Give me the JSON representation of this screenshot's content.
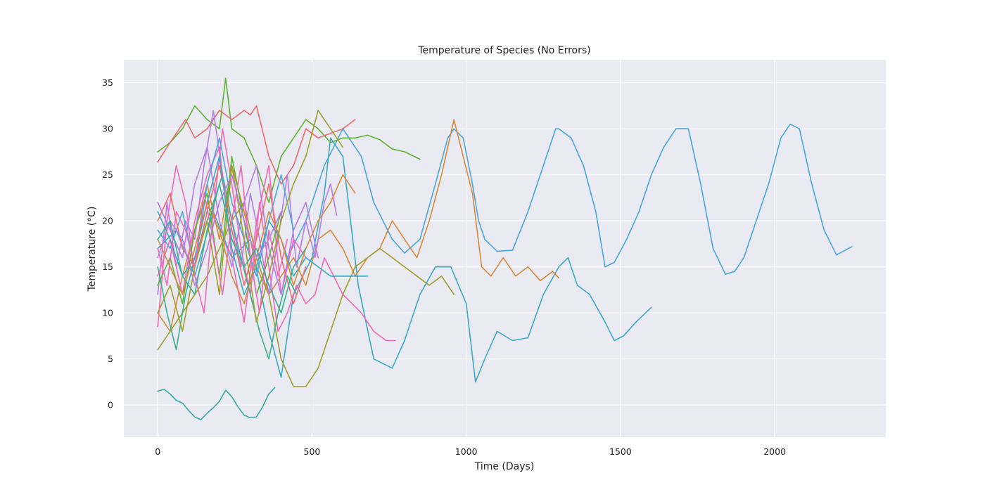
{
  "chart_data": {
    "type": "line",
    "title": "Temperature of Species (No Errors)",
    "xlabel": "Time (Days)",
    "ylabel": "Temperature (°C)",
    "xlim": [
      -110,
      2360
    ],
    "ylim": [
      -3.5,
      37.5
    ],
    "xticks": [
      0,
      500,
      1000,
      1500,
      2000
    ],
    "yticks": [
      0,
      5,
      10,
      15,
      20,
      25,
      30,
      35
    ],
    "grid": true,
    "legend": "none",
    "colors": {
      "background": "#ffffff",
      "plot_area": "#eaeaf2",
      "grid": "#ffffff"
    },
    "series": [
      {
        "color": "#4aa5dd",
        "x": [
          420,
          480,
          540,
          600,
          660,
          700,
          760,
          800,
          850,
          900,
          940,
          960,
          990,
          1020,
          1040,
          1060,
          1100,
          1150,
          1200,
          1250,
          1290,
          1300,
          1340,
          1380,
          1420,
          1450,
          1480,
          1520,
          1560,
          1600,
          1640,
          1680,
          1720,
          1760,
          1800,
          1840,
          1870,
          1900,
          1940,
          1980,
          2020,
          2050,
          2080,
          2120,
          2160,
          2200,
          2250
        ],
        "y": [
          16,
          20,
          26,
          30,
          27,
          22,
          18,
          16.5,
          18,
          24,
          29,
          30,
          29,
          24,
          20,
          18,
          16.7,
          16.8,
          21,
          26,
          30,
          30,
          29,
          26,
          21,
          15,
          15.5,
          18,
          21,
          25,
          28,
          30,
          30,
          24,
          17,
          14.2,
          14.5,
          16,
          20,
          24,
          29,
          30.5,
          30,
          24,
          19,
          16.3,
          17.2
        ]
      },
      {
        "color": "#3ba9c6",
        "x": [
          0,
          60,
          120,
          180,
          240,
          300,
          360,
          400,
          440,
          500,
          540,
          560,
          600,
          650,
          700,
          760,
          800,
          850,
          900,
          950,
          1000,
          1030,
          1060,
          1100,
          1150,
          1200,
          1250,
          1300,
          1330,
          1360,
          1400,
          1450,
          1480,
          1510,
          1550,
          1600
        ],
        "y": [
          17,
          19,
          14,
          21,
          16,
          18,
          8,
          3,
          12,
          16,
          23,
          29,
          27,
          13,
          5,
          4,
          7,
          12,
          15,
          15,
          11,
          2.5,
          5,
          8,
          7,
          7.3,
          12,
          15,
          16,
          13,
          12,
          9,
          7,
          7.5,
          9,
          10.6
        ]
      },
      {
        "color": "#d48a3a",
        "x": [
          0,
          40,
          80,
          120,
          160,
          200,
          240,
          280,
          320,
          360,
          400,
          440,
          480,
          520,
          560,
          600,
          640,
          680,
          720,
          760,
          800,
          840,
          880,
          920,
          960,
          990,
          1020,
          1050,
          1080,
          1120,
          1160,
          1200,
          1240,
          1280,
          1300
        ],
        "y": [
          10,
          8,
          14,
          19,
          24,
          18,
          26,
          21,
          15,
          12,
          14,
          16,
          13,
          18,
          19,
          17,
          14,
          16,
          17,
          20,
          18,
          16,
          20,
          25,
          31,
          27,
          23,
          15,
          14,
          16,
          14,
          15,
          13.5,
          14.5,
          13.8
        ]
      },
      {
        "color": "#9e9e2c",
        "x": [
          0,
          40,
          80,
          120,
          160,
          200,
          240,
          280,
          320,
          360,
          400,
          440,
          480,
          520,
          560,
          600,
          640,
          680,
          720,
          760,
          800,
          840,
          880,
          920,
          960
        ],
        "y": [
          6,
          8,
          10,
          12,
          14,
          17,
          20,
          22,
          16,
          12,
          5,
          2,
          2,
          4,
          8,
          12,
          15,
          16,
          17,
          16,
          15,
          14,
          13,
          14,
          12
        ]
      },
      {
        "color": "#5cb330",
        "x": [
          0,
          40,
          80,
          120,
          160,
          200,
          220,
          240,
          280,
          320,
          360,
          400,
          440,
          480,
          520,
          560,
          600,
          640,
          680,
          720,
          760,
          800,
          850
        ],
        "y": [
          27.5,
          28.5,
          30,
          32.5,
          31,
          30,
          35.5,
          30,
          29,
          26,
          22,
          27,
          29,
          31,
          30,
          28.5,
          29,
          29,
          29.3,
          28.8,
          27.8,
          27.5,
          26.7
        ]
      },
      {
        "color": "#eb6b6b",
        "x": [
          0,
          30,
          60,
          90,
          120,
          160,
          200,
          240,
          280,
          300,
          320,
          360,
          400,
          440,
          480,
          520,
          560,
          600,
          640
        ],
        "y": [
          26.4,
          28,
          29.5,
          31,
          29,
          30,
          32,
          31,
          32,
          31.5,
          32.5,
          27,
          24,
          26,
          30,
          29,
          29.5,
          30,
          31
        ]
      },
      {
        "color": "#ef6ab5",
        "x": [
          0,
          30,
          60,
          90,
          120,
          150,
          180,
          210,
          240,
          270,
          300,
          330,
          360,
          390,
          420,
          450,
          480,
          510,
          540,
          570,
          600,
          630,
          660,
          700,
          740,
          770
        ],
        "y": [
          8.5,
          20,
          26,
          22,
          14,
          10,
          21,
          30,
          24,
          17,
          12,
          22,
          15,
          8,
          10,
          13,
          11,
          12,
          16,
          14,
          12,
          11,
          10,
          8,
          7,
          7
        ]
      },
      {
        "color": "#b57ce6",
        "x": [
          0,
          30,
          60,
          90,
          120,
          150,
          180,
          210,
          240,
          270,
          300,
          330,
          360,
          390,
          420,
          450,
          480,
          510,
          540,
          560,
          580
        ],
        "y": [
          12,
          22,
          15,
          20,
          18,
          26,
          32,
          25,
          20,
          15,
          23,
          18,
          12,
          18,
          25,
          15,
          20,
          16,
          22,
          24,
          20.6
        ]
      },
      {
        "color": "#3ab090",
        "x": [
          0,
          30,
          60,
          90,
          120,
          150,
          180,
          210,
          240,
          270,
          300,
          330,
          360,
          390,
          420,
          450
        ],
        "y": [
          15,
          10,
          6,
          12,
          16,
          19,
          22,
          25,
          20,
          16,
          12,
          8,
          5,
          10,
          14,
          12
        ]
      },
      {
        "color": "#35aaa5",
        "x": [
          0,
          20,
          40,
          60,
          80,
          100,
          120,
          140,
          160,
          180,
          200,
          220,
          240,
          260,
          280,
          300,
          320,
          340,
          360,
          380
        ],
        "y": [
          1.5,
          1.7,
          1.2,
          0.5,
          0.2,
          -0.6,
          -1.3,
          -1.6,
          -0.9,
          -0.3,
          0.4,
          1.6,
          0.9,
          -0.2,
          -1.1,
          -1.4,
          -1.3,
          -0.2,
          1.2,
          1.9
        ]
      },
      {
        "color": "#ef6ab5",
        "x": [
          0,
          40,
          80,
          120,
          160,
          200,
          240,
          280,
          320,
          360,
          400,
          440,
          480
        ],
        "y": [
          14,
          18,
          12,
          20,
          25,
          28,
          16,
          9,
          20,
          26,
          12,
          18,
          16
        ]
      },
      {
        "color": "#b57ce6",
        "x": [
          0,
          40,
          80,
          120,
          160,
          200,
          240,
          280,
          320,
          360,
          400,
          440,
          480,
          520
        ],
        "y": [
          22,
          19,
          16,
          24,
          28,
          20,
          15,
          22,
          26,
          17,
          12,
          19,
          22,
          16
        ]
      },
      {
        "color": "#4aa5dd",
        "x": [
          0,
          40,
          80,
          120,
          160,
          200,
          240,
          280,
          320,
          360,
          400,
          440
        ],
        "y": [
          19,
          17,
          21,
          15,
          24,
          29,
          22,
          18,
          14,
          20,
          25,
          19
        ]
      },
      {
        "color": "#5cb330",
        "x": [
          0,
          40,
          80,
          120,
          160,
          200,
          240,
          280,
          320,
          360,
          400
        ],
        "y": [
          13,
          16,
          11,
          19,
          23,
          14,
          27,
          20,
          12,
          16,
          21
        ]
      },
      {
        "color": "#eb6b6b",
        "x": [
          0,
          40,
          80,
          120,
          160,
          200,
          240,
          280,
          320,
          360,
          400,
          440,
          480
        ],
        "y": [
          20,
          23,
          17,
          15,
          21,
          26,
          19,
          13,
          18,
          24,
          16,
          11,
          15
        ]
      },
      {
        "color": "#9e9e2c",
        "x": [
          0,
          40,
          80,
          120,
          160,
          200,
          240,
          280,
          320,
          360,
          400,
          440,
          480,
          520,
          560,
          600
        ],
        "y": [
          10,
          13,
          8,
          15,
          20,
          12,
          26,
          18,
          9,
          14,
          20,
          24,
          27,
          32,
          30,
          28
        ]
      },
      {
        "color": "#3ba9c6",
        "x": [
          0,
          40,
          80,
          120,
          160,
          200,
          240,
          280,
          320,
          360,
          400,
          440,
          480,
          520,
          560,
          600,
          640,
          680
        ],
        "y": [
          21,
          18,
          14,
          16,
          22,
          27,
          17,
          12,
          15,
          20,
          18,
          14,
          16,
          15,
          14,
          14,
          14,
          14
        ]
      },
      {
        "color": "#ef6ab5",
        "x": [
          0,
          30,
          60,
          90,
          120,
          150,
          180,
          210,
          240,
          270,
          300,
          330,
          360,
          390,
          420
        ],
        "y": [
          17,
          13,
          21,
          19,
          15,
          23,
          18,
          12,
          20,
          26,
          16,
          10,
          19,
          14,
          18
        ]
      },
      {
        "color": "#d48a3a",
        "x": [
          0,
          40,
          80,
          120,
          160,
          200,
          240,
          280,
          320,
          360,
          400,
          440,
          480,
          520,
          560,
          600,
          640
        ],
        "y": [
          18,
          15,
          12,
          17,
          22,
          19,
          14,
          11,
          16,
          21,
          18,
          13,
          17,
          20,
          22,
          25,
          23
        ]
      },
      {
        "color": "#b57ce6",
        "x": [
          0,
          40,
          80,
          120,
          160,
          200,
          240,
          280,
          320,
          360,
          400
        ],
        "y": [
          16,
          20,
          18,
          13,
          17,
          22,
          25,
          20,
          16,
          18,
          21
        ]
      },
      {
        "color": "#3ab090",
        "x": [
          0,
          40,
          80,
          120,
          160,
          200,
          240,
          280,
          320,
          360,
          400,
          440,
          480
        ],
        "y": [
          18,
          20,
          14,
          12,
          19,
          24,
          18,
          15,
          17,
          13,
          10,
          15,
          17
        ]
      }
    ]
  }
}
